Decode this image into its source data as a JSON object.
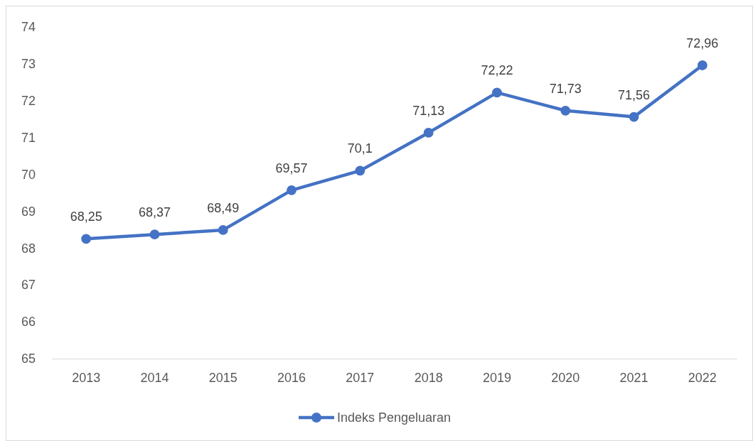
{
  "chart_data": {
    "type": "line",
    "categories": [
      "2013",
      "2014",
      "2015",
      "2016",
      "2017",
      "2018",
      "2019",
      "2020",
      "2021",
      "2022"
    ],
    "series": [
      {
        "name": "Indeks Pengeluaran",
        "color": "#4472c4",
        "values": [
          68.25,
          68.37,
          68.49,
          69.57,
          70.1,
          71.13,
          72.22,
          71.73,
          71.56,
          72.96
        ],
        "value_labels": [
          "68,25",
          "68,37",
          "68,49",
          "69,57",
          "70,1",
          "71,13",
          "72,22",
          "71,73",
          "71,56",
          "72,96"
        ]
      }
    ],
    "ylim": [
      65,
      74
    ],
    "yticks": [
      65,
      66,
      67,
      68,
      69,
      70,
      71,
      72,
      73,
      74
    ],
    "grid": false,
    "legend": "bottom",
    "marker": "circle",
    "line_style": "solid"
  }
}
